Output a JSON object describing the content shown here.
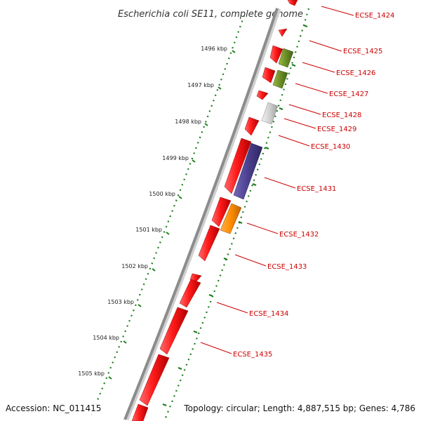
{
  "title": "Escherichia coli SE11, complete genome",
  "accession_text": "Accession: NC_011415",
  "summary_text": "Topology: circular; Length: 4,887,515 bp; Genes: 4,786",
  "colors": {
    "backbone": "#8c8c8c",
    "ticks": "#1e7d1e",
    "label": "#cc0000",
    "gene_red": "#ee1111",
    "gene_green": "#6b8e23",
    "gene_gray": "#c8c8c8",
    "gene_purple": "#4b3f8f",
    "gene_orange": "#ff8c00"
  },
  "scale_labels": [
    "1496 kbp",
    "1497 kbp",
    "1498 kbp",
    "1499 kbp",
    "1500 kbp",
    "1501 kbp",
    "1502 kbp",
    "1503 kbp",
    "1504 kbp",
    "1505 kbp"
  ],
  "gene_labels": [
    "ECSE_1424",
    "ECSE_1425",
    "ECSE_1426",
    "ECSE_1427",
    "ECSE_1428",
    "ECSE_1429",
    "ECSE_1430",
    "ECSE_1431",
    "ECSE_1432",
    "ECSE_1433",
    "ECSE_1434",
    "ECSE_1435"
  ]
}
